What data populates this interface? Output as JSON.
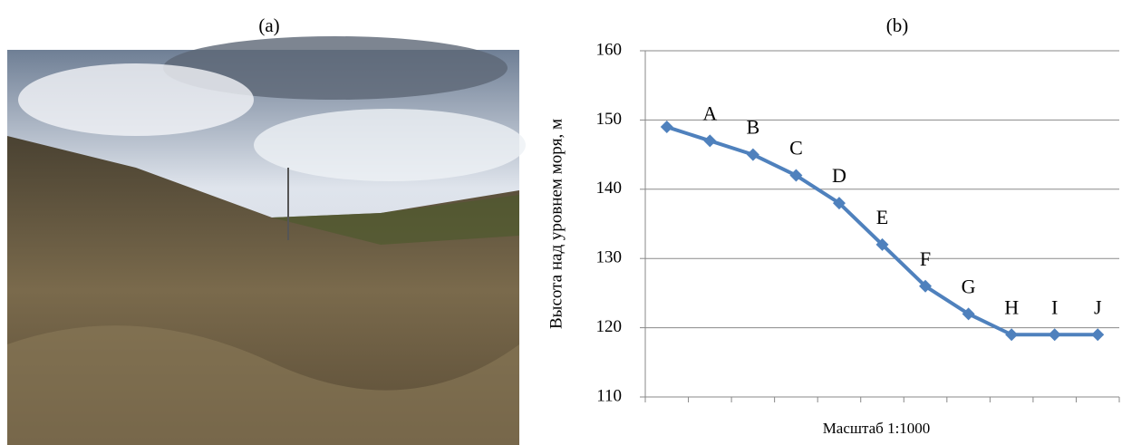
{
  "figure": {
    "panel_labels": [
      "(a)",
      "(b)"
    ]
  },
  "chart_data": {
    "type": "line",
    "x_label": "Масштаб 1:1000",
    "y_label": "Высота над уровнем моря, м",
    "categories": [
      null,
      "A",
      "B",
      "C",
      "D",
      "E",
      "F",
      "G",
      "H",
      "I",
      "J"
    ],
    "values": [
      149,
      147,
      145,
      142,
      138,
      132,
      126,
      122,
      119,
      119,
      119
    ],
    "color": "#4f81bd",
    "ylim": [
      110,
      160
    ],
    "yticks": [
      110,
      120,
      130,
      140,
      150,
      160
    ],
    "grid": true
  }
}
